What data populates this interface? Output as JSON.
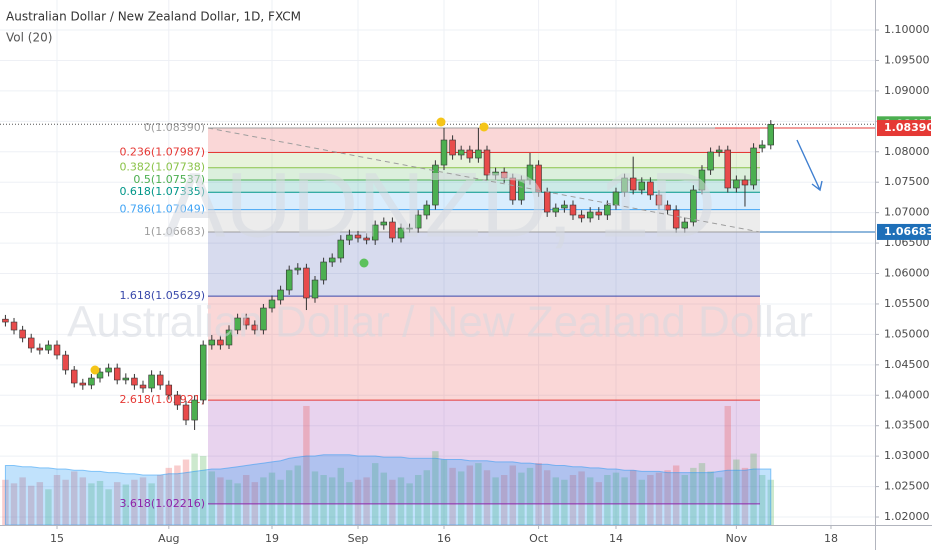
{
  "chart_data": {
    "type": "candlestick",
    "title": "Australian Dollar / New Zealand Dollar, 1D, FXCM",
    "volume_label": "Vol (20)",
    "watermark": "AUDNZD, 1D",
    "watermark_name": "Australian Dollar / New Zealand Dollar",
    "up_color": "#4caf50",
    "down_color": "#e84b4b",
    "volume_ma_color": "#2196f3",
    "grid": true,
    "xlim": [
      -0.63,
      101.12
    ],
    "xticks": [
      {
        "value": 6,
        "label": "15"
      },
      {
        "value": 19,
        "label": "Aug"
      },
      {
        "value": 31,
        "label": "19"
      },
      {
        "value": 41,
        "label": "Sep"
      },
      {
        "value": 51,
        "label": "16"
      },
      {
        "value": 62,
        "label": "Oct"
      },
      {
        "value": 71,
        "label": "14"
      },
      {
        "value": 85,
        "label": "Nov"
      },
      {
        "value": 96,
        "label": "18"
      }
    ],
    "ylim": [
      1.01869,
      1.10493
    ],
    "yticks": [
      {
        "value": 1.02,
        "label": "1.02000"
      },
      {
        "value": 1.025,
        "label": "1.02500"
      },
      {
        "value": 1.03,
        "label": "1.03000"
      },
      {
        "value": 1.035,
        "label": "1.03500"
      },
      {
        "value": 1.04,
        "label": "1.04000"
      },
      {
        "value": 1.045,
        "label": "1.04500"
      },
      {
        "value": 1.05,
        "label": "1.05000"
      },
      {
        "value": 1.055,
        "label": "1.05500"
      },
      {
        "value": 1.06,
        "label": "1.06000"
      },
      {
        "value": 1.065,
        "label": "1.06500"
      },
      {
        "value": 1.07,
        "label": "1.07000"
      },
      {
        "value": 1.075,
        "label": "1.07500"
      },
      {
        "value": 1.08,
        "label": "1.08000"
      },
      {
        "value": 1.085,
        "label": "1.08500"
      },
      {
        "value": 1.09,
        "label": "1.09000"
      },
      {
        "value": 1.095,
        "label": "1.09500"
      },
      {
        "value": 1.1,
        "label": "1.10000"
      }
    ],
    "open": [
      1.0525,
      1.05203,
      1.05072,
      1.04941,
      1.04776,
      1.04743,
      1.04826,
      1.04661,
      1.04415,
      1.04201,
      1.04168,
      1.04283,
      1.04382,
      1.04448,
      1.04251,
      1.04283,
      1.04168,
      1.04119,
      1.04333,
      1.04168,
      1.04004,
      1.0384,
      1.03593,
      1.03922,
      1.04826,
      1.04908,
      1.04826,
      1.05072,
      1.05269,
      1.05154,
      1.05072,
      1.05433,
      1.05565,
      1.05729,
      1.06058,
      1.0609,
      1.05598,
      1.05893,
      1.06189,
      1.06255,
      1.0655,
      1.06632,
      1.06583,
      1.0655,
      1.06797,
      1.06846,
      1.06583,
      1.06747,
      1.06747,
      1.06961,
      1.07125,
      1.07782,
      1.08193,
      1.07947,
      1.08029,
      1.07897,
      1.08029,
      1.07618,
      1.07667,
      1.07569,
      1.07207,
      1.07536,
      1.07782,
      1.07339,
      1.0701,
      1.07076,
      1.07125,
      1.06961,
      1.06912,
      1.0701,
      1.06961,
      1.07125,
      1.07339,
      1.07569,
      1.07372,
      1.07503,
      1.0729,
      1.07125,
      1.07043,
      1.06747,
      1.06846,
      1.07372,
      1.077,
      1.07996,
      1.08029,
      1.07405,
      1.07536,
      1.07454,
      1.08062,
      1.08111
    ],
    "high": [
      1.0532,
      1.0527,
      1.0514,
      1.0501,
      1.0485,
      1.049,
      1.049,
      1.0473,
      1.0448,
      1.0427,
      1.0435,
      1.0445,
      1.0452,
      1.0452,
      1.0436,
      1.0435,
      1.0424,
      1.0441,
      1.044,
      1.0424,
      1.0407,
      1.0391,
      1.04,
      1.049,
      1.0499,
      1.0498,
      1.0515,
      1.0534,
      1.0534,
      1.0523,
      1.055,
      1.0564,
      1.058,
      1.0613,
      1.0617,
      1.0616,
      1.0596,
      1.0626,
      1.0633,
      1.0663,
      1.0672,
      1.067,
      1.0666,
      1.0687,
      1.0692,
      1.0692,
      1.0682,
      1.0682,
      1.0704,
      1.072,
      1.0786,
      1.0839,
      1.0827,
      1.081,
      1.081,
      1.0839,
      1.081,
      1.0774,
      1.0774,
      1.0764,
      1.0761,
      1.0798,
      1.0786,
      1.0741,
      1.0715,
      1.072,
      1.072,
      1.0704,
      1.0709,
      1.0709,
      1.072,
      1.0741,
      1.0764,
      1.0792,
      1.0758,
      1.0758,
      1.0737,
      1.072,
      1.0712,
      1.0692,
      1.0745,
      1.0778,
      1.0807,
      1.081,
      1.081,
      1.0761,
      1.0761,
      1.0814,
      1.0819,
      1.0852
    ],
    "low": [
      1.0513,
      1.05,
      1.0487,
      1.047,
      1.0467,
      1.0468,
      1.0459,
      1.0434,
      1.0413,
      1.0409,
      1.041,
      1.0421,
      1.0431,
      1.0418,
      1.0418,
      1.0409,
      1.0404,
      1.0405,
      1.0409,
      1.0393,
      1.0376,
      1.0351,
      1.0343,
      1.0385,
      1.0475,
      1.0475,
      1.0476,
      1.05,
      1.0508,
      1.05,
      1.05,
      1.0536,
      1.0549,
      1.0565,
      1.0598,
      1.054,
      1.0552,
      1.0582,
      1.0611,
      1.0618,
      1.0647,
      1.0651,
      1.0648,
      1.0647,
      1.0672,
      1.0651,
      1.0651,
      1.0667,
      1.0667,
      1.0689,
      1.0705,
      1.077,
      1.0787,
      1.0787,
      1.0782,
      1.0782,
      1.0754,
      1.0754,
      1.0749,
      1.0713,
      1.0713,
      1.0746,
      1.0726,
      1.0693,
      1.0693,
      1.07,
      1.0688,
      1.0684,
      1.0684,
      1.0688,
      1.0688,
      1.0705,
      1.0726,
      1.073,
      1.073,
      1.0721,
      1.0705,
      1.0697,
      1.0667,
      1.0667,
      1.0677,
      1.073,
      1.0762,
      1.0792,
      1.0733,
      1.0733,
      1.071,
      1.0738,
      1.0799,
      1.0804
    ],
    "close": [
      1.05203,
      1.05072,
      1.04941,
      1.04776,
      1.04743,
      1.04826,
      1.04661,
      1.04415,
      1.04201,
      1.04168,
      1.04283,
      1.04382,
      1.04448,
      1.04251,
      1.04283,
      1.04168,
      1.04119,
      1.04333,
      1.04168,
      1.04004,
      1.0384,
      1.03593,
      1.03922,
      1.04826,
      1.04908,
      1.04826,
      1.05072,
      1.05269,
      1.05154,
      1.05072,
      1.05433,
      1.05565,
      1.05729,
      1.06058,
      1.0609,
      1.05598,
      1.05893,
      1.06189,
      1.06255,
      1.0655,
      1.06632,
      1.06583,
      1.0655,
      1.06797,
      1.06846,
      1.06583,
      1.06747,
      1.06747,
      1.06961,
      1.07125,
      1.07782,
      1.08193,
      1.07947,
      1.08029,
      1.07897,
      1.08029,
      1.07618,
      1.07667,
      1.07569,
      1.07207,
      1.07536,
      1.07782,
      1.07339,
      1.0701,
      1.07076,
      1.07125,
      1.06961,
      1.06912,
      1.0701,
      1.06961,
      1.07125,
      1.07339,
      1.07569,
      1.07372,
      1.07503,
      1.0729,
      1.07125,
      1.07043,
      1.06747,
      1.06846,
      1.07372,
      1.077,
      1.07996,
      1.08029,
      1.07405,
      1.07536,
      1.07454,
      1.08062,
      1.08111,
      1.08451
    ],
    "vlim": [
      0,
      105
    ],
    "volume": [
      38,
      35,
      40,
      33,
      36,
      30,
      42,
      38,
      45,
      40,
      35,
      37,
      30,
      36,
      34,
      38,
      40,
      35,
      42,
      48,
      50,
      55,
      60,
      58,
      45,
      40,
      38,
      35,
      42,
      36,
      40,
      44,
      38,
      46,
      50,
      100,
      45,
      42,
      40,
      48,
      36,
      38,
      40,
      52,
      44,
      38,
      40,
      35,
      42,
      46,
      62,
      55,
      48,
      45,
      50,
      52,
      46,
      40,
      42,
      50,
      44,
      48,
      52,
      46,
      40,
      38,
      42,
      45,
      40,
      36,
      42,
      44,
      40,
      46,
      38,
      42,
      44,
      46,
      50,
      42,
      48,
      52,
      45,
      40,
      100,
      55,
      48,
      60,
      42,
      38
    ],
    "volume_ma": [
      50,
      50,
      49,
      49,
      48,
      48,
      47,
      47,
      46,
      46,
      45,
      45,
      44,
      44,
      43,
      43,
      42,
      42,
      42,
      43,
      43,
      44,
      45,
      46,
      47,
      47,
      48,
      49,
      50,
      51,
      52,
      53,
      54,
      56,
      57,
      58,
      58,
      59,
      59,
      59,
      59,
      58,
      58,
      58,
      57,
      57,
      57,
      56,
      56,
      56,
      56,
      55,
      55,
      55,
      54,
      54,
      54,
      53,
      53,
      53,
      52,
      52,
      51,
      51,
      50,
      50,
      49,
      49,
      48,
      48,
      47,
      47,
      46,
      46,
      45,
      45,
      45,
      44,
      44,
      44,
      44,
      44,
      44,
      45,
      46,
      46,
      46,
      47,
      47,
      47
    ],
    "fib": [
      {
        "price": 1.0839,
        "label": "0(1.08390)",
        "color": "#9e9e9e"
      },
      {
        "price": 1.07987,
        "label": "0.236(1.07987)",
        "color": "#e53935"
      },
      {
        "price": 1.07738,
        "label": "0.382(1.07738)",
        "color": "#8bc34a"
      },
      {
        "price": 1.07537,
        "label": "0.5(1.07537)",
        "color": "#4caf50"
      },
      {
        "price": 1.07335,
        "label": "0.618(1.07335)",
        "color": "#009688"
      },
      {
        "price": 1.07049,
        "label": "0.786(1.07049)",
        "color": "#42a5f5"
      },
      {
        "price": 1.06683,
        "label": "1(1.06683)",
        "color": "#9e9e9e"
      },
      {
        "price": 1.05629,
        "label": "1.618(1.05629)",
        "color": "#3949ab"
      },
      {
        "price": 1.03921,
        "label": "2.618(1.03921)",
        "color": "#e53935"
      },
      {
        "price": 1.02216,
        "label": "3.618(1.02216)",
        "color": "#8e24aa"
      }
    ],
    "price_tags": [
      {
        "value": 1.08451,
        "color": "#4caf50"
      },
      {
        "value": 1.0839,
        "label": "1.08390",
        "color": "#e53935"
      },
      {
        "value": 1.06683,
        "label": "1.06683",
        "color": "#1e6fb8"
      }
    ]
  }
}
